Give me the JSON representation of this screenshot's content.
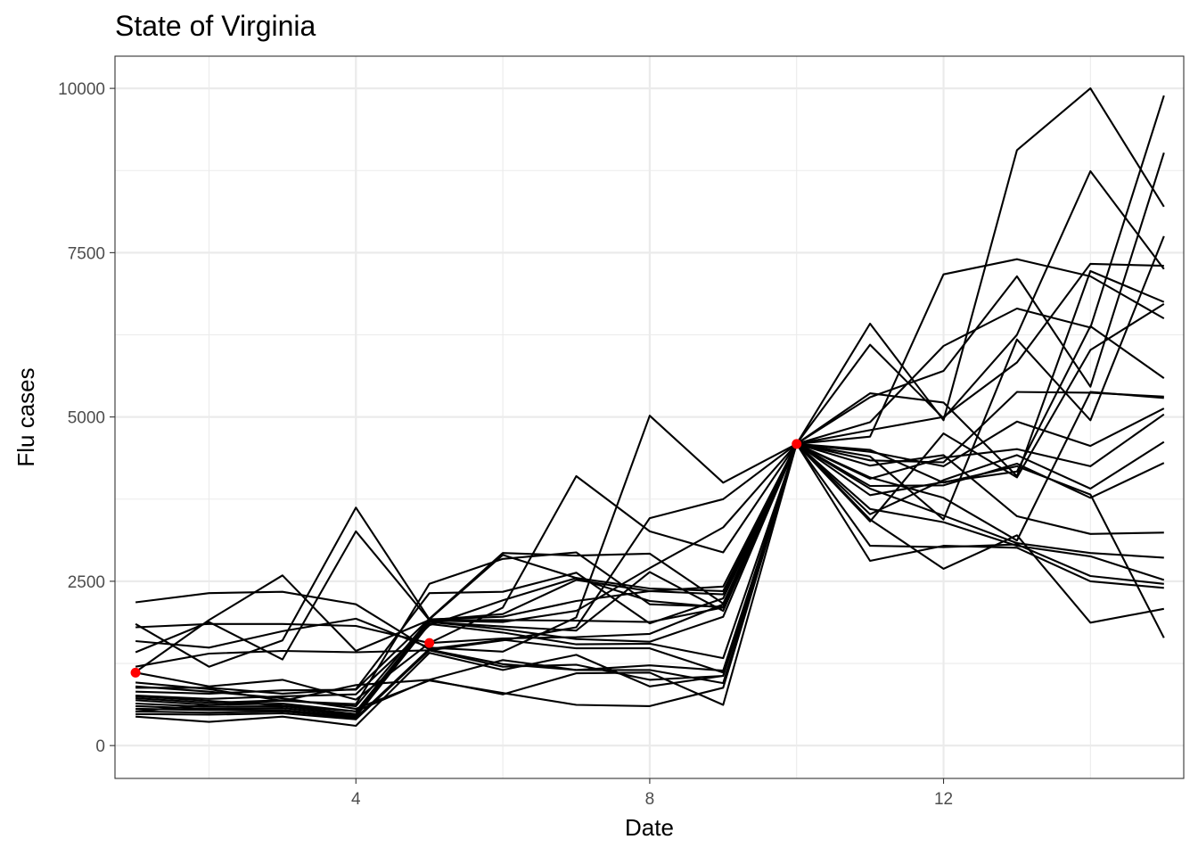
{
  "chart_data": {
    "type": "line",
    "title": "State of Virginia",
    "xlabel": "Date",
    "ylabel": "Flu cases",
    "xlim": [
      0.72,
      15.27
    ],
    "ylim": [
      -500,
      10490
    ],
    "x_ticks": [
      4,
      8,
      12
    ],
    "x_ticks_minor": [
      2,
      6,
      10,
      14
    ],
    "y_ticks": [
      0,
      2500,
      5000,
      7500,
      10000
    ],
    "y_ticks_minor": [
      1250,
      3750,
      6250,
      8750
    ],
    "grid": true,
    "theme": "bw",
    "line_color": "#000000",
    "point_color": "#ff0000",
    "observed_points": [
      {
        "x": 1,
        "y": 1110
      },
      {
        "x": 5,
        "y": 1560
      },
      {
        "x": 10,
        "y": 4590
      }
    ],
    "x": [
      1,
      2,
      3,
      4,
      5,
      6,
      7,
      8,
      9,
      10,
      11,
      12,
      13,
      14,
      15
    ],
    "series": [
      {
        "values": [
          2180,
          2320,
          2340,
          2150,
          1460,
          1240,
          1150,
          1220,
          1140,
          4590,
          6420,
          4950,
          9060,
          10000,
          8200
        ]
      },
      {
        "values": [
          1850,
          1200,
          1600,
          3620,
          1920,
          2900,
          2550,
          2200,
          2100,
          4590,
          6100,
          4980,
          6250,
          8740,
          7250
        ]
      },
      {
        "values": [
          1420,
          1880,
          1310,
          3260,
          1910,
          1910,
          1900,
          1880,
          2100,
          4590,
          4700,
          7170,
          7400,
          7140,
          6500
        ]
      },
      {
        "values": [
          1120,
          1910,
          2590,
          1440,
          1910,
          2000,
          2520,
          2350,
          2420,
          4590,
          5300,
          5700,
          7140,
          5460,
          9020
        ]
      },
      {
        "values": [
          1590,
          1490,
          1740,
          1930,
          1490,
          1430,
          1950,
          5020,
          4000,
          4590,
          4400,
          3440,
          6180,
          4950,
          7750
        ]
      },
      {
        "values": [
          1800,
          1850,
          1850,
          1820,
          1560,
          1630,
          1650,
          1700,
          2150,
          4590,
          4920,
          6080,
          6650,
          6360,
          9890
        ]
      },
      {
        "values": [
          1200,
          1400,
          1440,
          1420,
          1450,
          1600,
          1800,
          3460,
          3750,
          4590,
          4800,
          5000,
          5830,
          7330,
          7300
        ]
      },
      {
        "values": [
          1110,
          900,
          1000,
          700,
          1560,
          2100,
          4100,
          3260,
          2940,
          4590,
          5360,
          5220,
          4100,
          7220,
          6750
        ]
      },
      {
        "values": [
          960,
          860,
          680,
          630,
          2460,
          2840,
          2940,
          2150,
          2110,
          4590,
          3410,
          4750,
          4080,
          6020,
          6720
        ]
      },
      {
        "values": [
          880,
          880,
          790,
          860,
          2320,
          2340,
          2630,
          1860,
          2240,
          4590,
          3810,
          4010,
          4170,
          6380,
          5590
        ]
      },
      {
        "values": [
          820,
          790,
          840,
          850,
          1930,
          2930,
          2890,
          2920,
          2160,
          4590,
          4080,
          3770,
          3120,
          5380,
          5290
        ]
      },
      {
        "values": [
          760,
          710,
          750,
          780,
          1830,
          2210,
          2550,
          2390,
          2350,
          4590,
          4340,
          4310,
          5380,
          5370,
          5310
        ]
      },
      {
        "values": [
          720,
          650,
          690,
          600,
          1920,
          1960,
          2200,
          2350,
          2300,
          4590,
          4470,
          4250,
          4930,
          4560,
          5130
        ]
      },
      {
        "values": [
          690,
          620,
          640,
          520,
          1900,
          1880,
          2050,
          2700,
          3320,
          4590,
          4060,
          4380,
          4510,
          4250,
          5040
        ]
      },
      {
        "values": [
          640,
          590,
          600,
          480,
          1880,
          1810,
          1750,
          2640,
          2050,
          4590,
          3520,
          4040,
          4420,
          3910,
          4620
        ]
      },
      {
        "values": [
          600,
          560,
          570,
          460,
          1880,
          1770,
          1620,
          1580,
          1960,
          4590,
          3950,
          3960,
          4290,
          3770,
          4300
        ]
      },
      {
        "values": [
          560,
          540,
          540,
          440,
          1850,
          1720,
          1540,
          1550,
          1330,
          4590,
          4260,
          4420,
          3490,
          3220,
          3240
        ]
      },
      {
        "values": [
          520,
          500,
          520,
          420,
          1470,
          1610,
          1480,
          1480,
          1110,
          4590,
          3910,
          3500,
          3080,
          2930,
          2860
        ]
      },
      {
        "values": [
          480,
          470,
          490,
          400,
          1450,
          1200,
          1230,
          1000,
          1060,
          4590,
          3600,
          3400,
          3040,
          2880,
          2520
        ]
      },
      {
        "values": [
          440,
          360,
          440,
          300,
          1410,
          1150,
          1380,
          900,
          1060,
          4590,
          3040,
          3020,
          3060,
          2580,
          2460
        ]
      },
      {
        "values": [
          520,
          620,
          680,
          920,
          1000,
          1300,
          1150,
          1150,
          950,
          4590,
          2810,
          3040,
          3010,
          2500,
          2400
        ]
      },
      {
        "values": [
          900,
          820,
          720,
          560,
          990,
          800,
          620,
          600,
          880,
          4590,
          3440,
          2690,
          3200,
          1870,
          2080
        ]
      },
      {
        "values": [
          750,
          680,
          610,
          520,
          1000,
          780,
          1100,
          1110,
          620,
          4590,
          4500,
          4000,
          4250,
          3820,
          1640
        ]
      }
    ]
  }
}
